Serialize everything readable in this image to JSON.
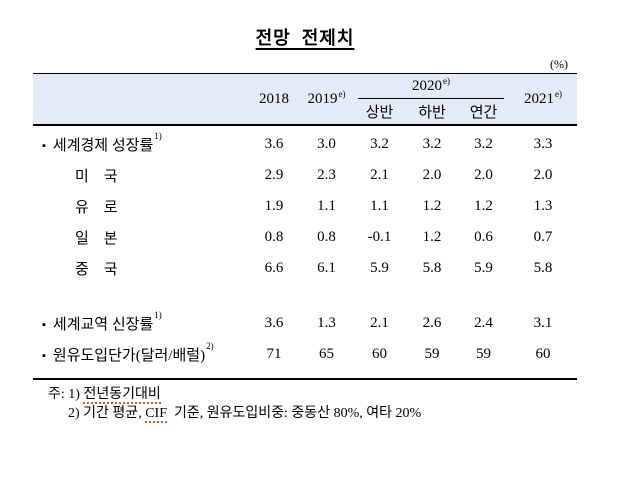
{
  "title": "전망  전제치",
  "unit_label": "(%)",
  "table": {
    "bullet": "▪",
    "header": {
      "y2018": "2018",
      "y2019": "2019",
      "y2019_sup": "e)",
      "y2020": "2020",
      "y2020_sup": "e)",
      "sub_first_half": "상반",
      "sub_second_half": "하반",
      "sub_annual": "연간",
      "y2021": "2021",
      "y2021_sup": "e)"
    },
    "rows": [
      {
        "label": "세계경제 성장률",
        "sup": "1)",
        "values": [
          "3.6",
          "3.0",
          "3.2",
          "3.2",
          "3.2",
          "3.3"
        ]
      },
      {
        "label": "미　국",
        "values": [
          "2.9",
          "2.3",
          "2.1",
          "2.0",
          "2.0",
          "2.0"
        ]
      },
      {
        "label": "유　로",
        "values": [
          "1.9",
          "1.1",
          "1.1",
          "1.2",
          "1.2",
          "1.3"
        ]
      },
      {
        "label": "일　본",
        "values": [
          "0.8",
          "0.8",
          "-0.1",
          "1.2",
          "0.6",
          "0.7"
        ]
      },
      {
        "label": "중　국",
        "values": [
          "6.6",
          "6.1",
          "5.9",
          "5.8",
          "5.9",
          "5.8"
        ]
      },
      {
        "label": "세계교역 신장률",
        "sup": "1)",
        "values": [
          "3.6",
          "1.3",
          "2.1",
          "2.6",
          "2.4",
          "3.1"
        ]
      },
      {
        "label": "원유도입단가(달러/배럴)",
        "sup": "2)",
        "values": [
          "71",
          "65",
          "60",
          "59",
          "59",
          "60"
        ]
      }
    ]
  },
  "notes": {
    "prefix": "주: ",
    "note1_num": "1) ",
    "note1_text": "전년동기대비",
    "note2_num": "2) ",
    "note2_pre": "기간 평균, ",
    "note2_cif": "CIF",
    "note2_post": "  기준, 원유도입비중: 중동산 80%, 여타 20%"
  },
  "colors": {
    "header_bg": "#e3ebf6",
    "squiggle": "#cc5a28"
  }
}
